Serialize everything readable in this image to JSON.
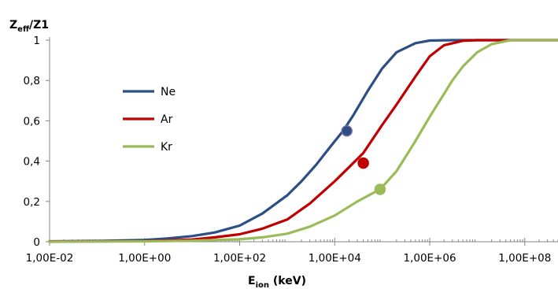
{
  "chart_data": {
    "type": "line",
    "x_scale": "log",
    "y_title_main": "Z",
    "y_title_sub": "eff",
    "y_title_tail": "/Z1",
    "x_title_main": "E",
    "x_title_sub": "ion",
    "x_title_tail": " (keV)",
    "xlim": [
      0.01,
      500000000
    ],
    "ylim": [
      0,
      1
    ],
    "x_ticks": [
      {
        "value": 0.01,
        "label": "1,00E-02"
      },
      {
        "value": 1,
        "label": "1,00E+00"
      },
      {
        "value": 100,
        "label": "1,00E+02"
      },
      {
        "value": 10000,
        "label": "1,00E+04"
      },
      {
        "value": 1000000,
        "label": "1,00E+06"
      },
      {
        "value": 100000000,
        "label": "1,00E+08"
      }
    ],
    "y_ticks": [
      {
        "value": 0,
        "label": "0"
      },
      {
        "value": 0.2,
        "label": "0,2"
      },
      {
        "value": 0.4,
        "label": "0,4"
      },
      {
        "value": 0.6,
        "label": "0,6"
      },
      {
        "value": 0.8,
        "label": "0,8"
      },
      {
        "value": 1,
        "label": "1"
      }
    ],
    "grid": false,
    "legend_position": "center-left",
    "series": [
      {
        "name": "Ne",
        "color": "#2b4e84",
        "x": [
          0.01,
          0.1,
          1,
          3,
          10,
          30,
          100,
          300,
          1000,
          2000,
          4000,
          8000,
          15000,
          25000,
          50000,
          100000,
          200000,
          500000,
          1000000,
          3000000,
          10000000,
          100000000,
          500000000
        ],
        "y": [
          0.002,
          0.004,
          0.009,
          0.016,
          0.028,
          0.046,
          0.08,
          0.14,
          0.23,
          0.3,
          0.38,
          0.47,
          0.55,
          0.63,
          0.75,
          0.86,
          0.94,
          0.985,
          0.998,
          1,
          1,
          1,
          1
        ],
        "marker": {
          "x": 18000,
          "y": 0.55
        }
      },
      {
        "name": "Ar",
        "color": "#c00000",
        "x": [
          0.01,
          0.1,
          1,
          10,
          30,
          100,
          300,
          1000,
          3000,
          10000,
          20000,
          40000,
          100000,
          200000,
          500000,
          1000000,
          2000000,
          5000000,
          10000000,
          100000000,
          500000000
        ],
        "y": [
          0.001,
          0.002,
          0.003,
          0.011,
          0.022,
          0.037,
          0.065,
          0.11,
          0.19,
          0.3,
          0.37,
          0.44,
          0.58,
          0.68,
          0.82,
          0.92,
          0.975,
          0.997,
          1,
          1,
          1
        ],
        "marker": {
          "x": 40000,
          "y": 0.39
        }
      },
      {
        "name": "Kr",
        "color": "#9bbb59",
        "x": [
          0.01,
          0.1,
          1,
          10,
          100,
          300,
          1000,
          3000,
          10000,
          30000,
          90000,
          200000,
          500000,
          1000000,
          3000000,
          5000000,
          10000000,
          20000000,
          50000000,
          100000000,
          500000000
        ],
        "y": [
          0.0,
          0.001,
          0.002,
          0.005,
          0.012,
          0.022,
          0.04,
          0.075,
          0.13,
          0.2,
          0.26,
          0.35,
          0.5,
          0.62,
          0.8,
          0.87,
          0.94,
          0.98,
          1,
          1,
          1
        ],
        "marker": {
          "x": 90000,
          "y": 0.26
        }
      }
    ]
  }
}
